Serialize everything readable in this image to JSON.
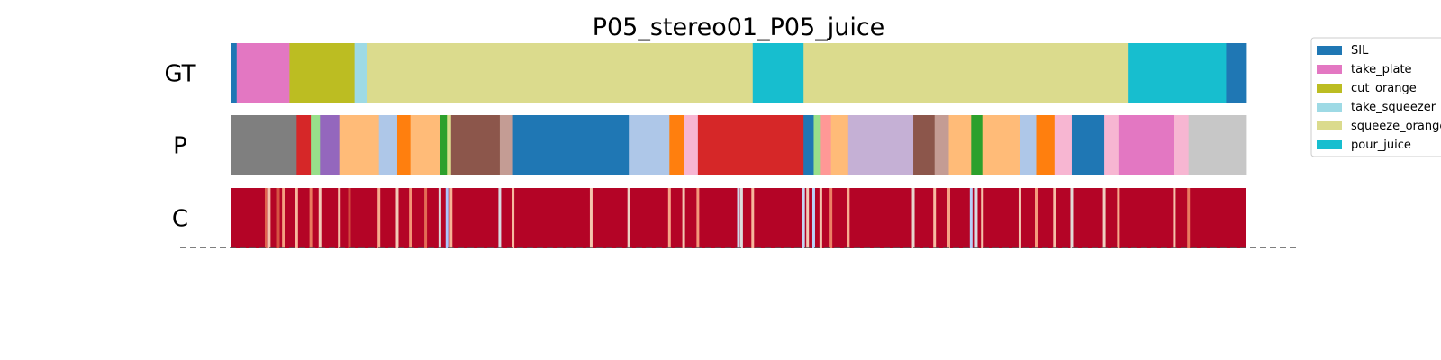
{
  "chart_data": {
    "type": "segmentation",
    "title": "P05_stereo01_P05_juice",
    "x_range": [
      0,
      1
    ],
    "rows": [
      {
        "label": "GT",
        "segments": [
          {
            "start": 0.0,
            "end": 0.006,
            "color": "#1f77b4"
          },
          {
            "start": 0.006,
            "end": 0.058,
            "color": "#e377c2"
          },
          {
            "start": 0.058,
            "end": 0.122,
            "color": "#bcbd22"
          },
          {
            "start": 0.122,
            "end": 0.134,
            "color": "#9edae5"
          },
          {
            "start": 0.134,
            "end": 0.514,
            "color": "#dbdb8d"
          },
          {
            "start": 0.514,
            "end": 0.564,
            "color": "#17becf"
          },
          {
            "start": 0.564,
            "end": 0.884,
            "color": "#dbdb8d"
          },
          {
            "start": 0.884,
            "end": 0.98,
            "color": "#17becf"
          },
          {
            "start": 0.98,
            "end": 1.0,
            "color": "#1f77b4"
          }
        ]
      },
      {
        "label": "P",
        "segments": [
          {
            "start": 0.0,
            "end": 0.065,
            "color": "#7f7f7f"
          },
          {
            "start": 0.065,
            "end": 0.079,
            "color": "#d62728"
          },
          {
            "start": 0.079,
            "end": 0.088,
            "color": "#98df8a"
          },
          {
            "start": 0.088,
            "end": 0.107,
            "color": "#9467bd"
          },
          {
            "start": 0.107,
            "end": 0.146,
            "color": "#ffbb78"
          },
          {
            "start": 0.146,
            "end": 0.164,
            "color": "#aec7e8"
          },
          {
            "start": 0.164,
            "end": 0.177,
            "color": "#ff7f0e"
          },
          {
            "start": 0.177,
            "end": 0.206,
            "color": "#ffbb78"
          },
          {
            "start": 0.206,
            "end": 0.213,
            "color": "#2ca02c"
          },
          {
            "start": 0.213,
            "end": 0.217,
            "color": "#dbdb8d"
          },
          {
            "start": 0.217,
            "end": 0.265,
            "color": "#8c564b"
          },
          {
            "start": 0.265,
            "end": 0.278,
            "color": "#c49c94"
          },
          {
            "start": 0.278,
            "end": 0.392,
            "color": "#1f77b4"
          },
          {
            "start": 0.392,
            "end": 0.432,
            "color": "#aec7e8"
          },
          {
            "start": 0.432,
            "end": 0.446,
            "color": "#ff7f0e"
          },
          {
            "start": 0.446,
            "end": 0.46,
            "color": "#f7b6d2"
          },
          {
            "start": 0.46,
            "end": 0.564,
            "color": "#d62728"
          },
          {
            "start": 0.564,
            "end": 0.574,
            "color": "#1f77b4"
          },
          {
            "start": 0.574,
            "end": 0.581,
            "color": "#98df8a"
          },
          {
            "start": 0.581,
            "end": 0.591,
            "color": "#ff9896"
          },
          {
            "start": 0.591,
            "end": 0.608,
            "color": "#ffbb78"
          },
          {
            "start": 0.608,
            "end": 0.672,
            "color": "#c5b0d5"
          },
          {
            "start": 0.672,
            "end": 0.693,
            "color": "#8c564b"
          },
          {
            "start": 0.693,
            "end": 0.707,
            "color": "#c49c94"
          },
          {
            "start": 0.707,
            "end": 0.729,
            "color": "#ffbb78"
          },
          {
            "start": 0.729,
            "end": 0.74,
            "color": "#2ca02c"
          },
          {
            "start": 0.74,
            "end": 0.777,
            "color": "#ffbb78"
          },
          {
            "start": 0.777,
            "end": 0.793,
            "color": "#aec7e8"
          },
          {
            "start": 0.793,
            "end": 0.811,
            "color": "#ff7f0e"
          },
          {
            "start": 0.811,
            "end": 0.828,
            "color": "#f7b6d2"
          },
          {
            "start": 0.828,
            "end": 0.86,
            "color": "#1f77b4"
          },
          {
            "start": 0.86,
            "end": 0.874,
            "color": "#f7b6d2"
          },
          {
            "start": 0.874,
            "end": 0.929,
            "color": "#e377c2"
          },
          {
            "start": 0.929,
            "end": 0.943,
            "color": "#f7b6d2"
          },
          {
            "start": 0.943,
            "end": 1.0,
            "color": "#c7c7c7"
          }
        ]
      },
      {
        "label": "C",
        "base_color": "#b40426",
        "stripes": [
          {
            "pos": 0.035,
            "color": "#e0654f"
          },
          {
            "pos": 0.038,
            "color": "#f4c4ab"
          },
          {
            "pos": 0.047,
            "color": "#d65244"
          },
          {
            "pos": 0.052,
            "color": "#f5a081"
          },
          {
            "pos": 0.065,
            "color": "#f7b89c"
          },
          {
            "pos": 0.079,
            "color": "#e97a5f"
          },
          {
            "pos": 0.088,
            "color": "#f2cbb7"
          },
          {
            "pos": 0.107,
            "color": "#f5c0a7"
          },
          {
            "pos": 0.117,
            "color": "#d24b40"
          },
          {
            "pos": 0.146,
            "color": "#f7ac8e"
          },
          {
            "pos": 0.164,
            "color": "#f2cbb7"
          },
          {
            "pos": 0.177,
            "color": "#f39475"
          },
          {
            "pos": 0.192,
            "color": "#e36c55"
          },
          {
            "pos": 0.206,
            "color": "#dddcdc"
          },
          {
            "pos": 0.213,
            "color": "#aac7fd"
          },
          {
            "pos": 0.217,
            "color": "#f7b396"
          },
          {
            "pos": 0.265,
            "color": "#d8dce2"
          },
          {
            "pos": 0.278,
            "color": "#f7ba9f"
          },
          {
            "pos": 0.355,
            "color": "#f4c5ad"
          },
          {
            "pos": 0.392,
            "color": "#edd2c3"
          },
          {
            "pos": 0.432,
            "color": "#f7a889"
          },
          {
            "pos": 0.446,
            "color": "#f3c7b1"
          },
          {
            "pos": 0.46,
            "color": "#f4987a"
          },
          {
            "pos": 0.5,
            "color": "#cdd9ec"
          },
          {
            "pos": 0.503,
            "color": "#dcdddd"
          },
          {
            "pos": 0.514,
            "color": "#f7b79b"
          },
          {
            "pos": 0.564,
            "color": "#c4d5f3"
          },
          {
            "pos": 0.568,
            "color": "#f2cbb7"
          },
          {
            "pos": 0.574,
            "color": "#bbd1f8"
          },
          {
            "pos": 0.581,
            "color": "#f4c5ad"
          },
          {
            "pos": 0.591,
            "color": "#ec8165"
          },
          {
            "pos": 0.608,
            "color": "#f7ad90"
          },
          {
            "pos": 0.672,
            "color": "#e8d6cc"
          },
          {
            "pos": 0.693,
            "color": "#f7bca1"
          },
          {
            "pos": 0.707,
            "color": "#f6a385"
          },
          {
            "pos": 0.729,
            "color": "#b9d0f9"
          },
          {
            "pos": 0.734,
            "color": "#d8dce2"
          },
          {
            "pos": 0.74,
            "color": "#f5c1a9"
          },
          {
            "pos": 0.777,
            "color": "#f3c7b1"
          },
          {
            "pos": 0.793,
            "color": "#f59c7d"
          },
          {
            "pos": 0.811,
            "color": "#f6bfa6"
          },
          {
            "pos": 0.828,
            "color": "#e2dad5"
          },
          {
            "pos": 0.86,
            "color": "#efcfbf"
          },
          {
            "pos": 0.874,
            "color": "#f7a98b"
          },
          {
            "pos": 0.929,
            "color": "#f5c1a9"
          },
          {
            "pos": 0.943,
            "color": "#e97a5f"
          }
        ]
      }
    ],
    "legend": {
      "placement": "right",
      "entries": [
        {
          "label": "SIL",
          "color": "#1f77b4"
        },
        {
          "label": "take_plate",
          "color": "#e377c2"
        },
        {
          "label": "cut_orange",
          "color": "#bcbd22"
        },
        {
          "label": "take_squeezer",
          "color": "#9edae5"
        },
        {
          "label": "squeeze_orange",
          "color": "#dbdb8d"
        },
        {
          "label": "pour_juice",
          "color": "#17becf"
        }
      ]
    },
    "baseline": {
      "style": "dashed"
    }
  }
}
